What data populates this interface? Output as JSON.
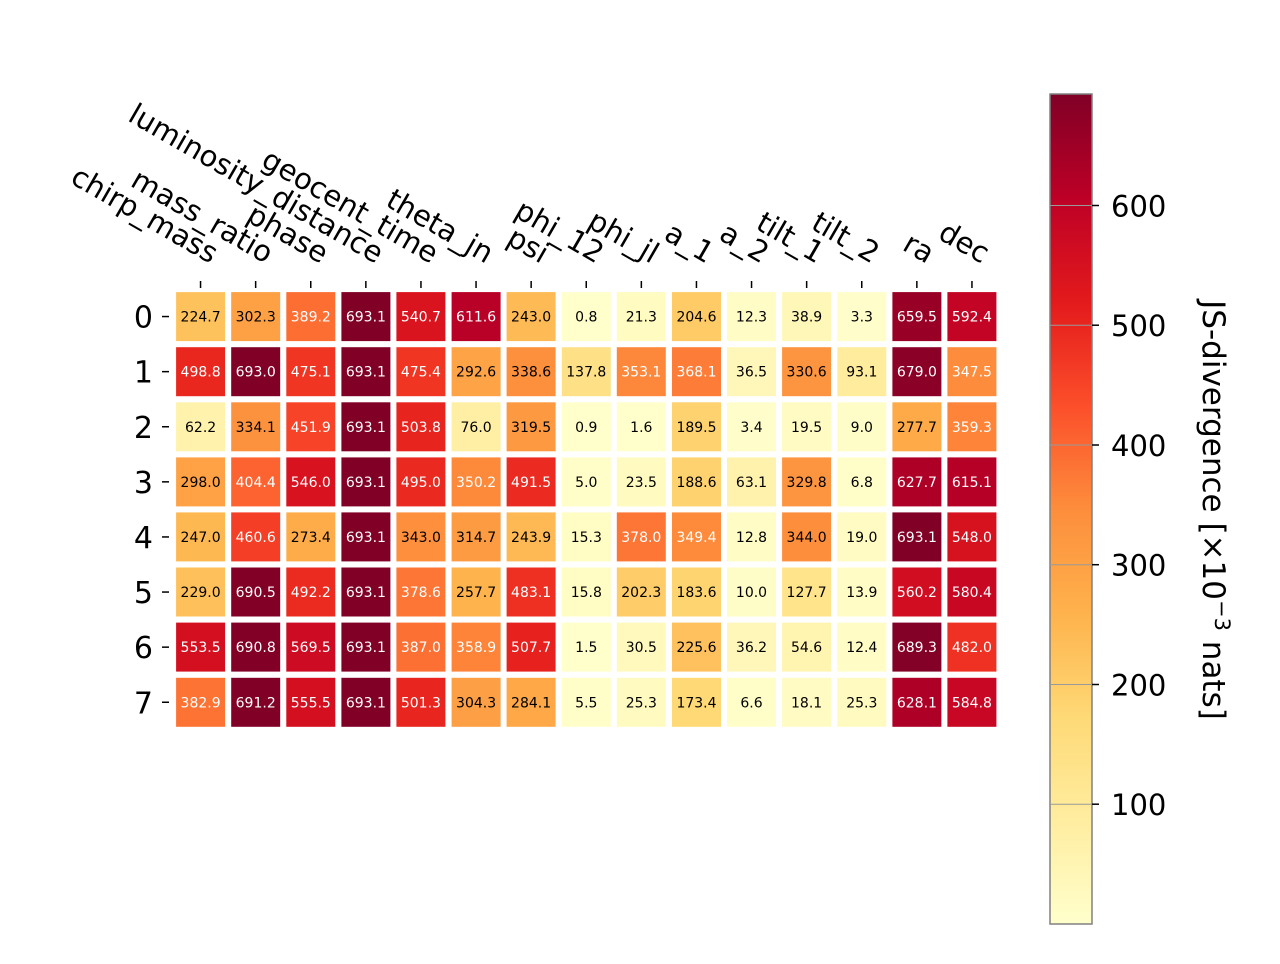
{
  "chart_data": {
    "type": "heatmap",
    "title": "",
    "x_categories": [
      "chirp_mass",
      "mass_ratio",
      "phase",
      "luminosity_distance",
      "geocent_time",
      "theta_jn",
      "psi",
      "phi_12",
      "phi_jl",
      "a_1",
      "a_2",
      "tilt_1",
      "tilt_2",
      "ra",
      "dec"
    ],
    "y_categories": [
      "0",
      "1",
      "2",
      "3",
      "4",
      "5",
      "6",
      "7"
    ],
    "values": [
      [
        224.7,
        302.3,
        389.2,
        693.1,
        540.7,
        611.6,
        243.0,
        0.8,
        21.3,
        204.6,
        12.3,
        38.9,
        3.3,
        659.5,
        592.4
      ],
      [
        498.8,
        693.0,
        475.1,
        693.1,
        475.4,
        292.6,
        338.6,
        137.8,
        353.1,
        368.1,
        36.5,
        330.6,
        93.1,
        679.0,
        347.5
      ],
      [
        62.2,
        334.1,
        451.9,
        693.1,
        503.8,
        76.0,
        319.5,
        0.9,
        1.6,
        189.5,
        3.4,
        19.5,
        9.0,
        277.7,
        359.3
      ],
      [
        298.0,
        404.4,
        546.0,
        693.1,
        495.0,
        350.2,
        491.5,
        5.0,
        23.5,
        188.6,
        63.1,
        329.8,
        6.8,
        627.7,
        615.1
      ],
      [
        247.0,
        460.6,
        273.4,
        693.1,
        343.0,
        314.7,
        243.9,
        15.3,
        378.0,
        349.4,
        12.8,
        344.0,
        19.0,
        693.1,
        548.0
      ],
      [
        229.0,
        690.5,
        492.2,
        693.1,
        378.6,
        257.7,
        483.1,
        15.8,
        202.3,
        183.6,
        10.0,
        127.7,
        13.9,
        560.2,
        580.4
      ],
      [
        553.5,
        690.8,
        569.5,
        693.1,
        387.0,
        358.9,
        507.7,
        1.5,
        30.5,
        225.6,
        36.2,
        54.6,
        12.4,
        689.3,
        482.0
      ],
      [
        382.9,
        691.2,
        555.5,
        693.1,
        501.3,
        304.3,
        284.1,
        5.5,
        25.3,
        173.4,
        6.6,
        18.1,
        25.3,
        628.1,
        584.8
      ]
    ],
    "value_format_decimals": 1,
    "colormap": "YlOrRd",
    "colormap_stops": [
      "#ffffcc",
      "#ffeda0",
      "#fed976",
      "#feb24c",
      "#fd8d3c",
      "#fc4e2a",
      "#e31a1c",
      "#bd0026",
      "#800026"
    ],
    "color_range": [
      0,
      693.1
    ],
    "colorbar": {
      "label_main": "JS-divergence [×10",
      "label_exp": "−3",
      "label_tail": " nats]",
      "ticks": [
        100,
        200,
        300,
        400,
        500,
        600
      ]
    },
    "grid": false,
    "legend": "colorbar-right"
  }
}
